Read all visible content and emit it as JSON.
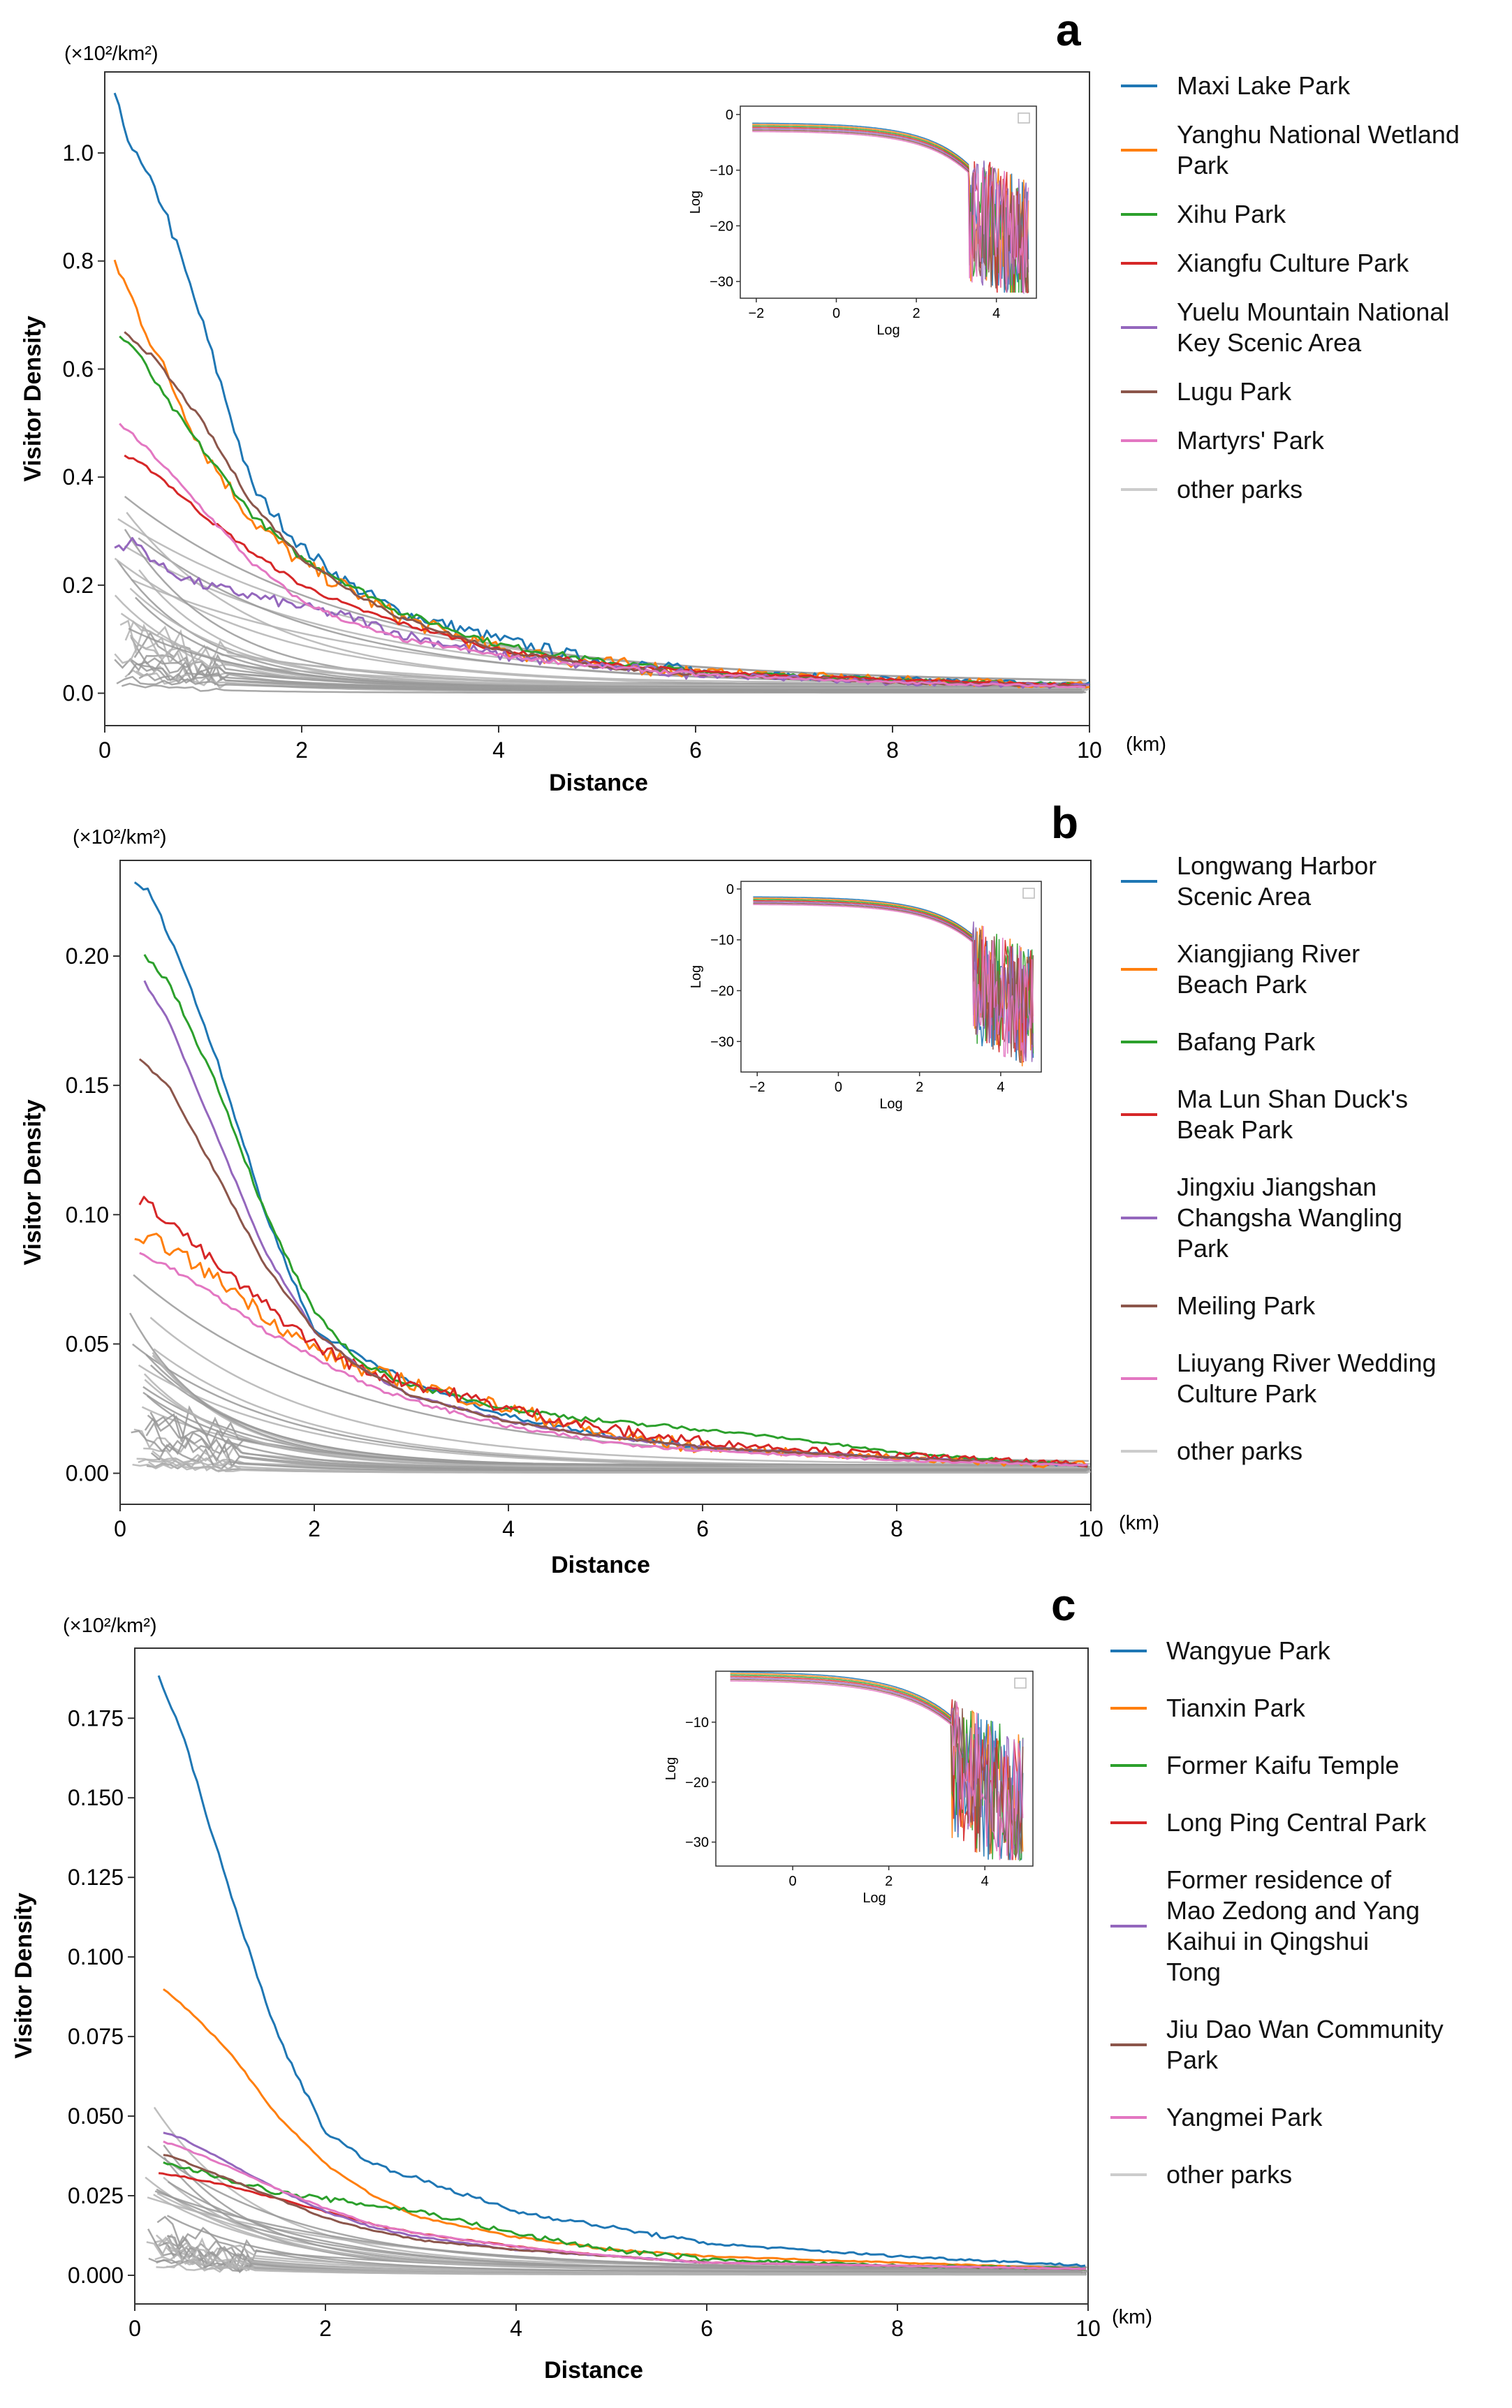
{
  "chart_data": [
    {
      "panel": "a",
      "type": "line",
      "unit_label": "(×10²/km²)",
      "xlabel": "Distance",
      "x_unit": "(km)",
      "ylabel": "Visitor Density",
      "xlim": [
        0,
        10
      ],
      "ylim": [
        -0.06,
        1.15
      ],
      "xticks": [
        0,
        2,
        4,
        6,
        8,
        10
      ],
      "xtick_labels": [
        "0",
        "2",
        "4",
        "6",
        "8",
        "10"
      ],
      "yticks": [
        0.0,
        0.2,
        0.4,
        0.6,
        0.8,
        1.0
      ],
      "ytick_labels": [
        "0.0",
        "0.2",
        "0.4",
        "0.6",
        "0.8",
        "1.0"
      ],
      "legend_position": "right",
      "series": [
        {
          "name": "Maxi Lake Park",
          "color": "#1f77b4",
          "x": [
            0.1,
            0.3,
            0.6,
            1.0,
            1.5,
            2.0,
            2.5,
            3.0,
            4.0,
            5.0,
            6.0,
            8.0,
            10.0
          ],
          "values": [
            1.1,
            1.0,
            0.9,
            0.68,
            0.38,
            0.27,
            0.2,
            0.15,
            0.1,
            0.06,
            0.04,
            0.025,
            0.015
          ],
          "noise": 0.012
        },
        {
          "name": "Yanghu National Wetland Park",
          "color": "#ff7f0e",
          "x": [
            0.1,
            0.3,
            0.6,
            1.0,
            1.5,
            2.0,
            2.5,
            3.0,
            4.0,
            5.0,
            6.0,
            8.0,
            10.0
          ],
          "values": [
            0.8,
            0.72,
            0.6,
            0.45,
            0.32,
            0.24,
            0.19,
            0.14,
            0.08,
            0.055,
            0.04,
            0.025,
            0.015
          ],
          "noise": 0.015
        },
        {
          "name": "Xihu Park",
          "color": "#2ca02c",
          "x": [
            0.15,
            0.3,
            0.6,
            1.0,
            1.5,
            2.0,
            2.5,
            3.0,
            4.0,
            5.0,
            6.0,
            8.0,
            10.0
          ],
          "values": [
            0.66,
            0.64,
            0.55,
            0.45,
            0.33,
            0.25,
            0.2,
            0.15,
            0.09,
            0.06,
            0.04,
            0.025,
            0.015
          ],
          "noise": 0.006
        },
        {
          "name": "Xiangfu Culture Park",
          "color": "#d62728",
          "x": [
            0.2,
            0.5,
            1.0,
            1.5,
            2.0,
            2.5,
            3.0,
            4.0,
            5.0,
            6.0,
            8.0,
            10.0
          ],
          "values": [
            0.44,
            0.41,
            0.33,
            0.26,
            0.2,
            0.16,
            0.13,
            0.08,
            0.055,
            0.04,
            0.025,
            0.015
          ],
          "noise": 0.004
        },
        {
          "name": "Yuelu Mountain National Key Scenic Area",
          "color": "#9467bd",
          "x": [
            0.1,
            0.3,
            0.6,
            1.0,
            1.5,
            2.0,
            2.5,
            3.0,
            4.0,
            5.0,
            6.0,
            8.0,
            10.0
          ],
          "values": [
            0.27,
            0.28,
            0.23,
            0.2,
            0.18,
            0.16,
            0.14,
            0.11,
            0.07,
            0.05,
            0.035,
            0.02,
            0.012
          ],
          "noise": 0.01
        },
        {
          "name": "Lugu Park",
          "color": "#8c564b",
          "x": [
            0.2,
            0.5,
            1.0,
            1.5,
            2.0,
            2.5,
            3.0,
            4.0,
            5.0,
            6.0,
            8.0,
            10.0
          ],
          "values": [
            0.67,
            0.62,
            0.5,
            0.35,
            0.25,
            0.19,
            0.14,
            0.08,
            0.05,
            0.035,
            0.02,
            0.012
          ],
          "noise": 0.004
        },
        {
          "name": "Martyrs' Park",
          "color": "#e377c2",
          "x": [
            0.15,
            0.5,
            1.0,
            1.5,
            2.0,
            2.5,
            3.0,
            4.0,
            5.0,
            6.0,
            8.0,
            10.0
          ],
          "values": [
            0.5,
            0.44,
            0.34,
            0.24,
            0.17,
            0.13,
            0.1,
            0.07,
            0.05,
            0.035,
            0.02,
            0.012
          ],
          "noise": 0.004
        },
        {
          "name": "other parks",
          "color": "#cccccc"
        }
      ]
    },
    {
      "panel": "b",
      "type": "line",
      "unit_label": "(×10²/km²)",
      "xlabel": "Distance",
      "x_unit": "(km)",
      "ylabel": "Visitor Density",
      "xlim": [
        0,
        10
      ],
      "ylim": [
        -0.012,
        0.237
      ],
      "xticks": [
        0,
        2,
        4,
        6,
        8,
        10
      ],
      "xtick_labels": [
        "0",
        "2",
        "4",
        "6",
        "8",
        "10"
      ],
      "yticks": [
        0.0,
        0.05,
        0.1,
        0.15,
        0.2
      ],
      "ytick_labels": [
        "0.00",
        "0.05",
        "0.10",
        "0.15",
        "0.20"
      ],
      "legend_position": "right",
      "series": [
        {
          "name": "Longwang Harbor Scenic Area",
          "color": "#1f77b4",
          "x": [
            0.15,
            0.3,
            0.6,
            1.0,
            1.5,
            2.0,
            2.5,
            3.0,
            4.0,
            5.0,
            6.0,
            8.0,
            10.0
          ],
          "values": [
            0.228,
            0.225,
            0.2,
            0.16,
            0.1,
            0.055,
            0.045,
            0.035,
            0.022,
            0.015,
            0.01,
            0.006,
            0.003
          ],
          "noise": 0.001
        },
        {
          "name": "Xiangjiang River Beach Park",
          "color": "#ff7f0e",
          "x": [
            0.15,
            0.4,
            0.8,
            1.2,
            1.6,
            2.0,
            2.5,
            3.0,
            3.5,
            4.0,
            5.0,
            6.0,
            8.0,
            10.0
          ],
          "values": [
            0.088,
            0.09,
            0.08,
            0.07,
            0.058,
            0.048,
            0.04,
            0.035,
            0.03,
            0.025,
            0.015,
            0.01,
            0.006,
            0.003
          ],
          "noise": 0.003
        },
        {
          "name": "Bafang Park",
          "color": "#2ca02c",
          "x": [
            0.25,
            0.5,
            1.0,
            1.5,
            2.0,
            2.5,
            3.0,
            4.0,
            5.0,
            6.0,
            7.0,
            8.0,
            10.0
          ],
          "values": [
            0.2,
            0.19,
            0.15,
            0.1,
            0.062,
            0.042,
            0.034,
            0.025,
            0.02,
            0.017,
            0.013,
            0.008,
            0.003
          ],
          "noise": 0.001
        },
        {
          "name": "Ma Lun Shan Duck's Beak Park",
          "color": "#d62728",
          "x": [
            0.2,
            0.5,
            1.0,
            1.5,
            2.0,
            2.5,
            3.0,
            4.0,
            5.0,
            6.0,
            8.0,
            10.0
          ],
          "values": [
            0.106,
            0.098,
            0.08,
            0.065,
            0.05,
            0.04,
            0.035,
            0.025,
            0.017,
            0.012,
            0.007,
            0.003
          ],
          "noise": 0.0025
        },
        {
          "name": "Jingxiu Jiangshan Changsha Wangling Park",
          "color": "#9467bd",
          "x": [
            0.25,
            0.5,
            1.0,
            1.5,
            2.0,
            2.5,
            3.0,
            4.0,
            5.0,
            6.0,
            8.0,
            10.0
          ],
          "values": [
            0.19,
            0.175,
            0.13,
            0.085,
            0.055,
            0.04,
            0.03,
            0.02,
            0.014,
            0.01,
            0.006,
            0.003
          ],
          "noise": 0.0005
        },
        {
          "name": "Meiling Park",
          "color": "#8c564b",
          "x": [
            0.2,
            0.5,
            1.0,
            1.5,
            2.0,
            2.5,
            3.0,
            4.0,
            5.0,
            6.0,
            8.0,
            10.0
          ],
          "values": [
            0.16,
            0.15,
            0.115,
            0.08,
            0.055,
            0.04,
            0.03,
            0.02,
            0.014,
            0.01,
            0.006,
            0.003
          ],
          "noise": 0.0005
        },
        {
          "name": "Liuyang River Wedding Culture Park",
          "color": "#e377c2",
          "x": [
            0.2,
            0.5,
            1.0,
            1.5,
            2.0,
            2.5,
            3.0,
            4.0,
            5.0,
            6.0,
            8.0,
            10.0
          ],
          "values": [
            0.085,
            0.08,
            0.068,
            0.055,
            0.045,
            0.035,
            0.028,
            0.018,
            0.012,
            0.009,
            0.005,
            0.003
          ],
          "noise": 0.0008
        },
        {
          "name": "other parks",
          "color": "#cccccc"
        }
      ]
    },
    {
      "panel": "c",
      "type": "line",
      "unit_label": "(×10²/km²)",
      "xlabel": "Distance",
      "x_unit": "(km)",
      "ylabel": "Visitor Density",
      "xlim": [
        0,
        10
      ],
      "ylim": [
        -0.009,
        0.197
      ],
      "xticks": [
        0,
        2,
        4,
        6,
        8,
        10
      ],
      "xtick_labels": [
        "0",
        "2",
        "4",
        "6",
        "8",
        "10"
      ],
      "yticks": [
        0.0,
        0.025,
        0.05,
        0.075,
        0.1,
        0.125,
        0.15,
        0.175
      ],
      "ytick_labels": [
        "0.000",
        "0.025",
        "0.050",
        "0.075",
        "0.100",
        "0.125",
        "0.150",
        "0.175"
      ],
      "legend_position": "right",
      "series": [
        {
          "name": "Wangyue Park",
          "color": "#1f77b4",
          "x": [
            0.25,
            0.5,
            1.0,
            1.5,
            2.0,
            2.5,
            3.0,
            3.5,
            4.0,
            5.0,
            6.0,
            8.0,
            10.0
          ],
          "values": [
            0.188,
            0.17,
            0.12,
            0.075,
            0.045,
            0.035,
            0.03,
            0.025,
            0.02,
            0.015,
            0.01,
            0.006,
            0.003
          ],
          "noise": 0.0007
        },
        {
          "name": "Tianxin Park",
          "color": "#ff7f0e",
          "x": [
            0.3,
            0.5,
            1.0,
            1.5,
            2.0,
            2.5,
            3.0,
            4.0,
            5.0,
            6.0,
            8.0,
            10.0
          ],
          "values": [
            0.09,
            0.085,
            0.07,
            0.05,
            0.035,
            0.025,
            0.018,
            0.012,
            0.008,
            0.006,
            0.004,
            0.002
          ],
          "noise": 0.0003
        },
        {
          "name": "Former Kaifu Temple",
          "color": "#2ca02c",
          "x": [
            0.3,
            0.5,
            1.0,
            1.5,
            2.0,
            2.5,
            3.0,
            4.0,
            5.0,
            6.0,
            8.0,
            10.0
          ],
          "values": [
            0.035,
            0.034,
            0.03,
            0.026,
            0.024,
            0.022,
            0.02,
            0.013,
            0.008,
            0.005,
            0.003,
            0.002
          ],
          "noise": 0.0008
        },
        {
          "name": "Long Ping Central Park",
          "color": "#d62728",
          "x": [
            0.25,
            0.5,
            1.0,
            1.5,
            2.0,
            2.5,
            3.0,
            4.0,
            5.0,
            6.0,
            8.0,
            10.0
          ],
          "values": [
            0.032,
            0.031,
            0.028,
            0.024,
            0.02,
            0.016,
            0.013,
            0.009,
            0.006,
            0.004,
            0.003,
            0.002
          ],
          "noise": 0.0002
        },
        {
          "name": "Former residence of Mao Zedong and Yang Kaihui in Qingshui Tong",
          "color": "#9467bd",
          "x": [
            0.3,
            0.5,
            1.0,
            1.5,
            2.0,
            2.5,
            3.0,
            4.0,
            5.0,
            6.0,
            8.0,
            10.0
          ],
          "values": [
            0.045,
            0.043,
            0.035,
            0.027,
            0.02,
            0.015,
            0.012,
            0.008,
            0.006,
            0.004,
            0.003,
            0.002
          ],
          "noise": 0.0002
        },
        {
          "name": "Jiu Dao Wan Community Park",
          "color": "#8c564b",
          "x": [
            0.3,
            0.5,
            1.0,
            1.5,
            2.0,
            2.5,
            3.0,
            4.0,
            5.0,
            6.0,
            8.0,
            10.0
          ],
          "values": [
            0.038,
            0.036,
            0.03,
            0.024,
            0.018,
            0.014,
            0.011,
            0.008,
            0.006,
            0.004,
            0.003,
            0.002
          ],
          "noise": 0.0002
        },
        {
          "name": "Yangmei Park",
          "color": "#e377c2",
          "x": [
            0.3,
            0.5,
            1.0,
            1.5,
            2.0,
            2.5,
            3.0,
            4.0,
            5.0,
            6.0,
            8.0,
            10.0
          ],
          "values": [
            0.042,
            0.04,
            0.034,
            0.027,
            0.021,
            0.016,
            0.013,
            0.009,
            0.006,
            0.004,
            0.003,
            0.002
          ],
          "noise": 0.0002
        },
        {
          "name": "other parks",
          "color": "#cccccc"
        }
      ]
    }
  ],
  "insets": [
    {
      "xlabel": "Log",
      "ylabel": "Log",
      "xlim": [
        -2.4,
        5.0
      ],
      "ylim": [
        -33,
        1.5
      ],
      "xticks": [
        -2,
        0,
        2,
        4
      ],
      "xtick_labels": [
        "−2",
        "0",
        "2",
        "4"
      ],
      "yticks": [
        0,
        -10,
        -20,
        -30
      ],
      "ytick_labels": [
        "0",
        "−10",
        "−20",
        "−30"
      ]
    },
    {
      "xlabel": "Log",
      "ylabel": "Log",
      "xlim": [
        -2.4,
        5.0
      ],
      "ylim": [
        -36,
        1.5
      ],
      "xticks": [
        -2,
        0,
        2,
        4
      ],
      "xtick_labels": [
        "−2",
        "0",
        "2",
        "4"
      ],
      "yticks": [
        0,
        -10,
        -20,
        -30
      ],
      "ytick_labels": [
        "0",
        "−10",
        "−20",
        "−30"
      ]
    },
    {
      "xlabel": "Log",
      "ylabel": "Log",
      "xlim": [
        -1.6,
        5.0
      ],
      "ylim": [
        -34,
        -1.5
      ],
      "xticks": [
        0,
        2,
        4
      ],
      "xtick_labels": [
        "0",
        "2",
        "4"
      ],
      "yticks": [
        -10,
        -20,
        -30
      ],
      "ytick_labels": [
        "−10",
        "−20",
        "−30"
      ]
    }
  ]
}
